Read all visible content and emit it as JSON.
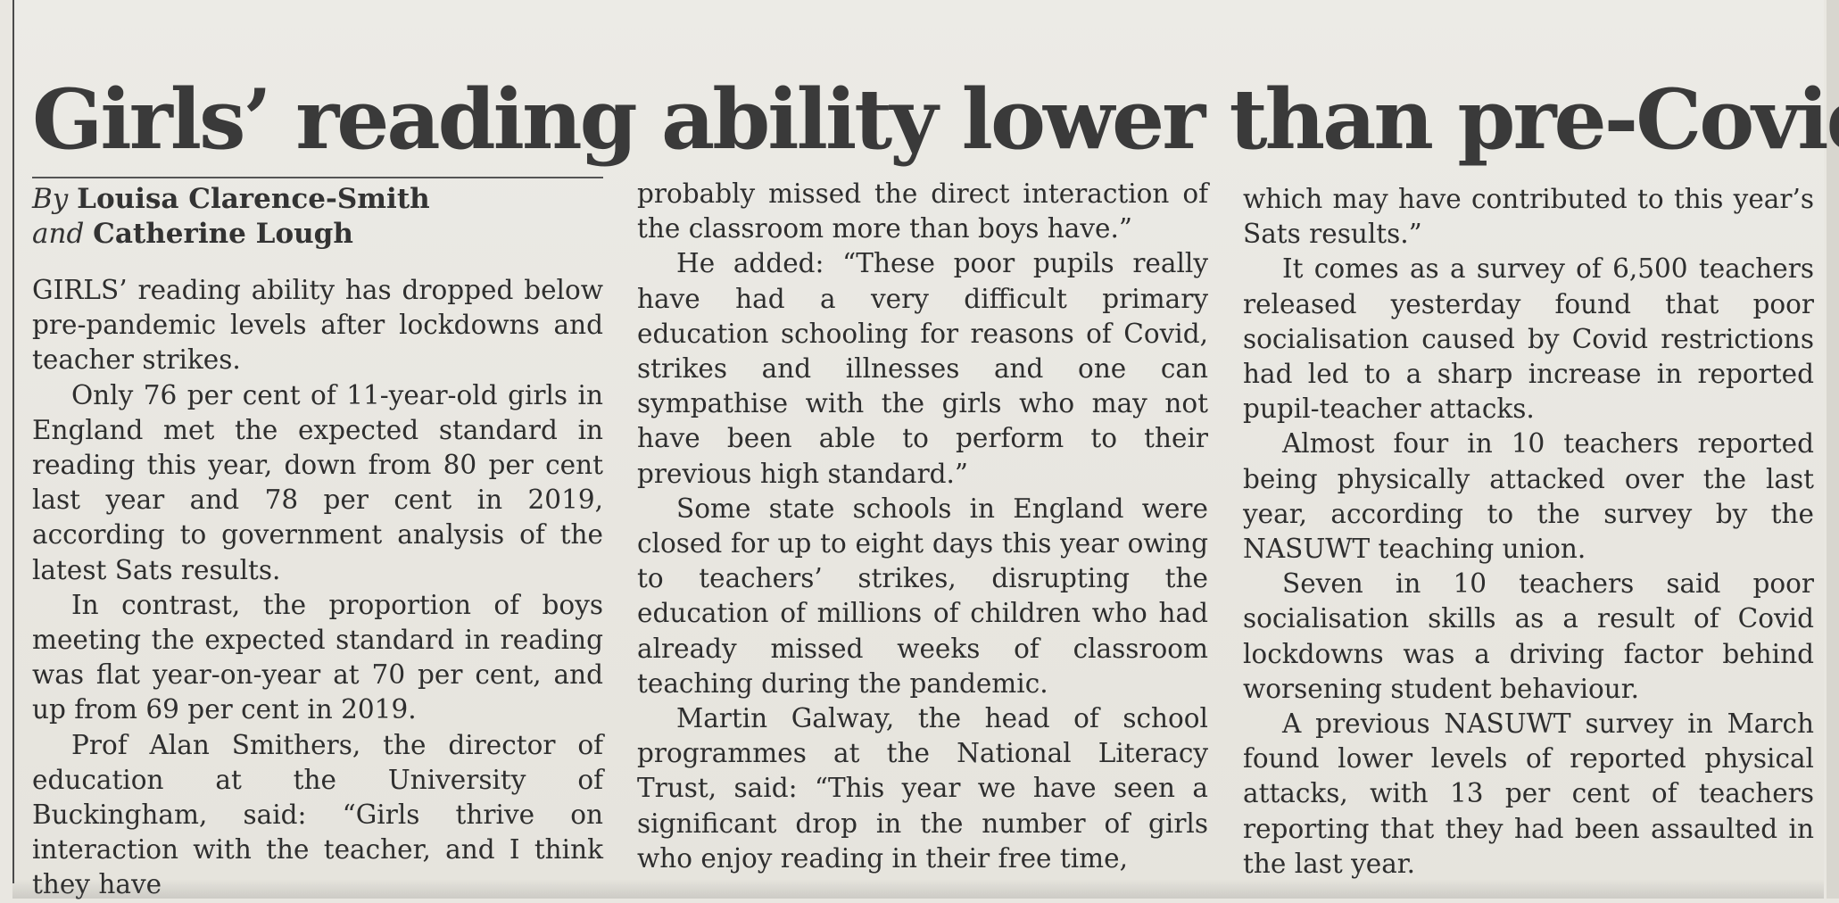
{
  "article": {
    "headline": "Girls’ reading ability lower than pre-Covid",
    "byline": {
      "prefix": "By",
      "author1": "Louisa Clarence-Smith",
      "conjunction": "and",
      "author2": "Catherine Lough"
    },
    "columns": [
      [
        "GIRLS’ reading ability has dropped below pre-pandemic levels after lockdowns and teacher strikes.",
        "Only 76 per cent of 11-year-old girls in England met the expected standard in reading this year, down from 80 per cent last year and 78 per cent in 2019, according to government analysis of the latest Sats results.",
        "In contrast, the proportion of boys meeting the expected standard in reading was flat year-on-year at 70 per cent, and up from 69 per cent in 2019.",
        "Prof Alan Smithers, the director of education at the University of Buckingham, said: “Girls thrive on interaction with the teacher, and I think they have"
      ],
      [
        "probably missed the direct interaction of the classroom more than boys have.”",
        "He added: “These poor pupils really have had a very difficult primary education schooling for reasons of Covid, strikes and illnesses and one can sympathise with the girls who may not have been able to perform to their previous high standard.”",
        "Some state schools in England were closed for up to eight days this year owing to teachers’ strikes, disrupting the education of millions of children who had already missed weeks of classroom teaching during the pandemic.",
        "Martin Galway, the head of school programmes at the National Literacy Trust, said: “This year we have seen a significant drop in the number of girls who enjoy reading in their free time,"
      ],
      [
        "which may have contributed to this year’s Sats results.”",
        "It comes as a survey of 6,500 teachers released yesterday found that poor socialisation caused by Covid restrictions had led to a sharp increase in reported pupil-teacher attacks.",
        "Almost four in 10 teachers reported being physically attacked over the last year, according to the survey by the NASUWT teaching union.",
        "Seven in 10 teachers said poor socialisation skills as a result of Covid lockdowns was a driving factor behind worsening student behaviour.",
        "A previous NASUWT survey in March found lower levels of reported physical attacks, with 13 per cent of teachers reporting that they had been assaulted in the last year."
      ]
    ]
  }
}
